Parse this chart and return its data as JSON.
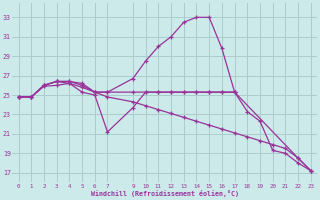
{
  "background_color": "#cceaea",
  "grid_color": "#aacccc",
  "line_color": "#993399",
  "xlabel": "Windchill (Refroidissement éolien,°C)",
  "ylabel_ticks": [
    17,
    19,
    21,
    23,
    25,
    27,
    29,
    31,
    33
  ],
  "x_ticks": [
    0,
    1,
    2,
    3,
    4,
    5,
    6,
    7,
    9,
    10,
    11,
    12,
    13,
    14,
    15,
    16,
    17,
    18,
    19,
    20,
    21,
    22,
    23
  ],
  "xlim": [
    -0.5,
    23.5
  ],
  "ylim": [
    16.0,
    34.5
  ],
  "series": [
    {
      "x": [
        0,
        1,
        2,
        3,
        4,
        5,
        6,
        7,
        9,
        10,
        11,
        12,
        13,
        14,
        15,
        16,
        17
      ],
      "y": [
        24.8,
        24.8,
        26.0,
        26.4,
        26.4,
        26.2,
        25.3,
        25.3,
        25.3,
        25.3,
        25.3,
        25.3,
        25.3,
        25.3,
        25.3,
        25.3,
        25.3
      ]
    },
    {
      "x": [
        0,
        1,
        2,
        3,
        4,
        5,
        6,
        7,
        9,
        10,
        11,
        12,
        13,
        14,
        15,
        16,
        17,
        22,
        23
      ],
      "y": [
        24.8,
        24.8,
        26.0,
        26.4,
        26.4,
        26.0,
        25.3,
        25.3,
        26.7,
        28.5,
        30.0,
        31.0,
        32.5,
        33.0,
        33.0,
        29.8,
        25.3,
        18.5,
        17.2
      ]
    },
    {
      "x": [
        0,
        1,
        2,
        3,
        4,
        5,
        6,
        7,
        9,
        10,
        11,
        12,
        13,
        14,
        15,
        16,
        17,
        18,
        19,
        20,
        21,
        22,
        23
      ],
      "y": [
        24.8,
        24.8,
        25.9,
        26.0,
        26.2,
        25.8,
        25.3,
        24.8,
        24.3,
        23.9,
        23.5,
        23.1,
        22.7,
        22.3,
        21.9,
        21.5,
        21.1,
        20.7,
        20.3,
        19.9,
        19.5,
        18.5,
        17.2
      ]
    },
    {
      "x": [
        0,
        1,
        2,
        3,
        4,
        5,
        6,
        7,
        9,
        10,
        11,
        12,
        13,
        14,
        15,
        16,
        17,
        18,
        19,
        20,
        21,
        22,
        23
      ],
      "y": [
        24.8,
        24.8,
        26.0,
        26.4,
        26.2,
        25.3,
        25.0,
        21.2,
        23.7,
        25.3,
        25.3,
        25.3,
        25.3,
        25.3,
        25.3,
        25.3,
        25.3,
        23.3,
        22.3,
        19.3,
        19.0,
        18.0,
        17.2
      ]
    }
  ]
}
